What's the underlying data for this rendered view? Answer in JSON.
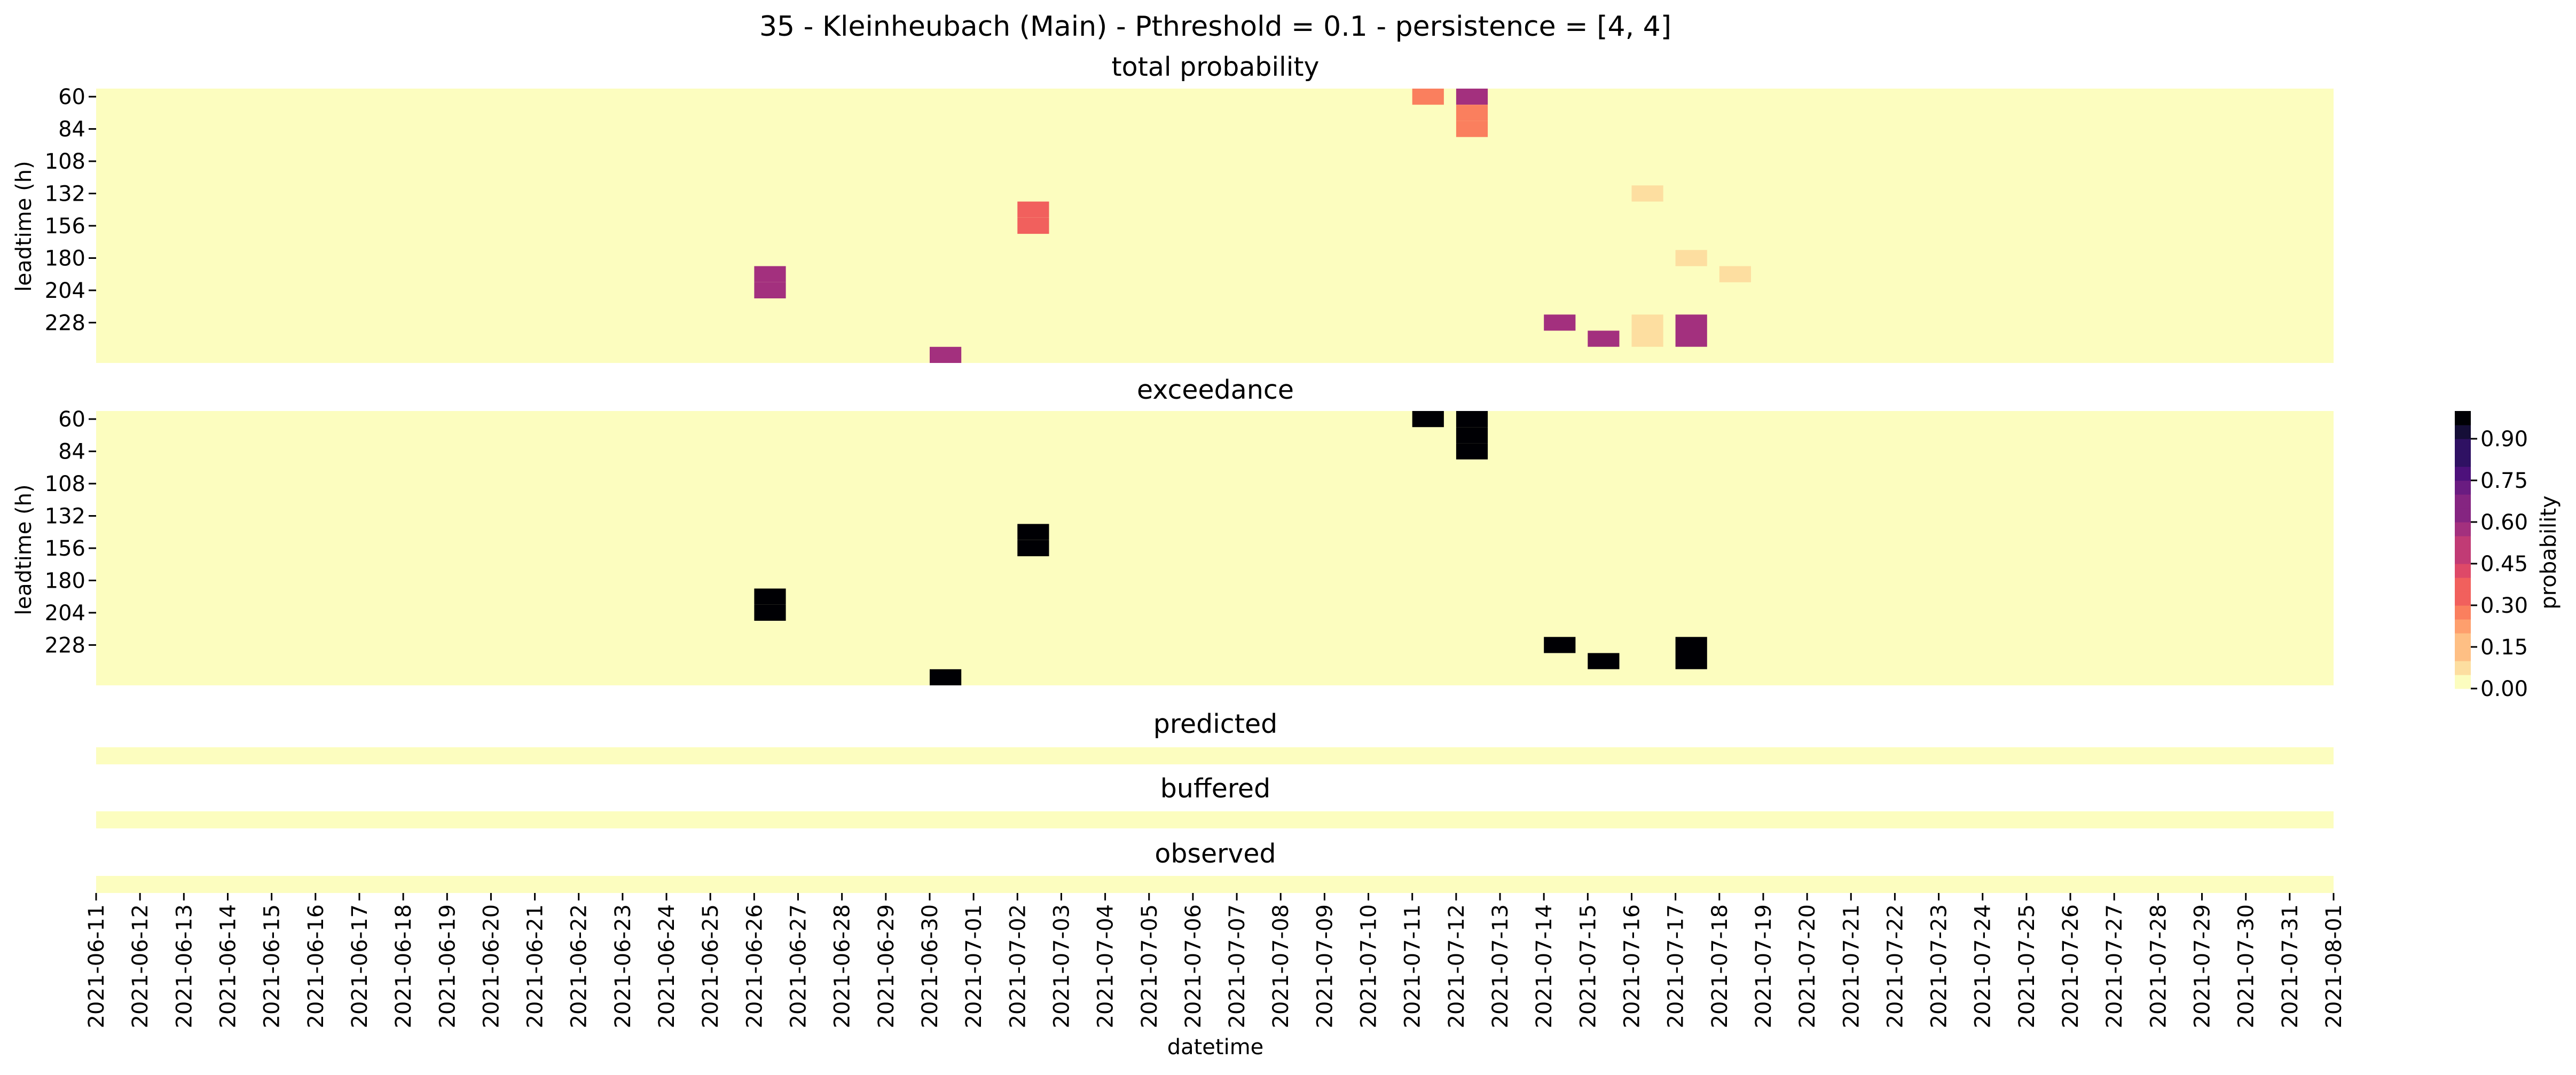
{
  "title": "35 - Kleinheubach (Main) - Pthreshold = 0.1 - persistence = [4, 4]",
  "colorbar": {
    "label": "probability",
    "ticks": [
      "0.00",
      "0.15",
      "0.30",
      "0.45",
      "0.60",
      "0.75",
      "0.90"
    ],
    "tick_values": [
      0.0,
      0.15,
      0.3,
      0.45,
      0.6,
      0.75,
      0.9
    ],
    "range": [
      0,
      1
    ],
    "bins": 20,
    "colormap": "magma_r",
    "palette": [
      "#fcfdbf",
      "#fddea0",
      "#febf84",
      "#fe9f6d",
      "#fa7f5e",
      "#f1605d",
      "#de4968",
      "#c13b75",
      "#a3307e",
      "#852581",
      "#6a1c81",
      "#4d117b",
      "#2f1163",
      "#150e37",
      "#000004"
    ]
  },
  "chart_data": [
    {
      "type": "heatmap",
      "title": "total probability",
      "ylabel": "leadtime (h)",
      "xlabel": "",
      "x_range": [
        "2021-06-11",
        "2021-08-01"
      ],
      "y_tick_labels": [
        "60",
        "84",
        "108",
        "132",
        "156",
        "180",
        "204",
        "228"
      ],
      "y_range_h": [
        60,
        252
      ],
      "background_value": 0.0,
      "cells": [
        {
          "date": "2021-07-11",
          "leadtime": 60,
          "value": 0.3
        },
        {
          "date": "2021-07-12",
          "leadtime": 60,
          "value": 0.6
        },
        {
          "date": "2021-07-12",
          "leadtime": 72,
          "value": 0.3
        },
        {
          "date": "2021-07-12",
          "leadtime": 84,
          "value": 0.3
        },
        {
          "date": "2021-07-02",
          "leadtime": 144,
          "value": 0.35
        },
        {
          "date": "2021-07-02",
          "leadtime": 156,
          "value": 0.35
        },
        {
          "date": "2021-07-16",
          "leadtime": 132,
          "value": 0.1
        },
        {
          "date": "2021-06-26",
          "leadtime": 192,
          "value": 0.55
        },
        {
          "date": "2021-06-26",
          "leadtime": 204,
          "value": 0.55
        },
        {
          "date": "2021-07-17",
          "leadtime": 180,
          "value": 0.1
        },
        {
          "date": "2021-07-18",
          "leadtime": 192,
          "value": 0.1
        },
        {
          "date": "2021-06-30",
          "leadtime": 252,
          "value": 0.55
        },
        {
          "date": "2021-07-14",
          "leadtime": 228,
          "value": 0.55
        },
        {
          "date": "2021-07-15",
          "leadtime": 240,
          "value": 0.55
        },
        {
          "date": "2021-07-16",
          "leadtime": 228,
          "value": 0.1
        },
        {
          "date": "2021-07-16",
          "leadtime": 240,
          "value": 0.1
        },
        {
          "date": "2021-07-17",
          "leadtime": 228,
          "value": 0.55
        },
        {
          "date": "2021-07-17",
          "leadtime": 240,
          "value": 0.55
        }
      ]
    },
    {
      "type": "heatmap",
      "title": "exceedance",
      "ylabel": "leadtime (h)",
      "xlabel": "",
      "x_range": [
        "2021-06-11",
        "2021-08-01"
      ],
      "y_tick_labels": [
        "60",
        "84",
        "108",
        "132",
        "156",
        "180",
        "204",
        "228"
      ],
      "y_range_h": [
        60,
        252
      ],
      "background_value": 0.0,
      "cells": [
        {
          "date": "2021-07-11",
          "leadtime": 60,
          "value": 1
        },
        {
          "date": "2021-07-12",
          "leadtime": 60,
          "value": 1
        },
        {
          "date": "2021-07-12",
          "leadtime": 72,
          "value": 1
        },
        {
          "date": "2021-07-12",
          "leadtime": 84,
          "value": 1
        },
        {
          "date": "2021-07-02",
          "leadtime": 144,
          "value": 1
        },
        {
          "date": "2021-07-02",
          "leadtime": 156,
          "value": 1
        },
        {
          "date": "2021-06-26",
          "leadtime": 192,
          "value": 1
        },
        {
          "date": "2021-06-26",
          "leadtime": 204,
          "value": 1
        },
        {
          "date": "2021-06-30",
          "leadtime": 252,
          "value": 1
        },
        {
          "date": "2021-07-14",
          "leadtime": 228,
          "value": 1
        },
        {
          "date": "2021-07-15",
          "leadtime": 240,
          "value": 1
        },
        {
          "date": "2021-07-17",
          "leadtime": 228,
          "value": 1
        },
        {
          "date": "2021-07-17",
          "leadtime": 240,
          "value": 1
        }
      ]
    },
    {
      "type": "heatmap",
      "title": "predicted",
      "x_range": [
        "2021-06-11",
        "2021-08-01"
      ],
      "background_value": 0.0,
      "cells": []
    },
    {
      "type": "heatmap",
      "title": "buffered",
      "x_range": [
        "2021-06-11",
        "2021-08-01"
      ],
      "background_value": 0.0,
      "cells": []
    },
    {
      "type": "heatmap",
      "title": "observed",
      "x_range": [
        "2021-06-11",
        "2021-08-01"
      ],
      "background_value": 0.0,
      "cells": []
    }
  ],
  "x_axis": {
    "label": "datetime",
    "tick_labels": [
      "2021-06-11",
      "2021-06-12",
      "2021-06-13",
      "2021-06-14",
      "2021-06-15",
      "2021-06-16",
      "2021-06-17",
      "2021-06-18",
      "2021-06-19",
      "2021-06-20",
      "2021-06-21",
      "2021-06-22",
      "2021-06-23",
      "2021-06-24",
      "2021-06-25",
      "2021-06-26",
      "2021-06-27",
      "2021-06-28",
      "2021-06-29",
      "2021-06-30",
      "2021-07-01",
      "2021-07-02",
      "2021-07-03",
      "2021-07-04",
      "2021-07-05",
      "2021-07-06",
      "2021-07-07",
      "2021-07-08",
      "2021-07-09",
      "2021-07-10",
      "2021-07-11",
      "2021-07-12",
      "2021-07-13",
      "2021-07-14",
      "2021-07-15",
      "2021-07-16",
      "2021-07-17",
      "2021-07-18",
      "2021-07-19",
      "2021-07-20",
      "2021-07-21",
      "2021-07-22",
      "2021-07-23",
      "2021-07-24",
      "2021-07-25",
      "2021-07-26",
      "2021-07-27",
      "2021-07-28",
      "2021-07-29",
      "2021-07-30",
      "2021-07-31",
      "2021-08-01"
    ]
  }
}
